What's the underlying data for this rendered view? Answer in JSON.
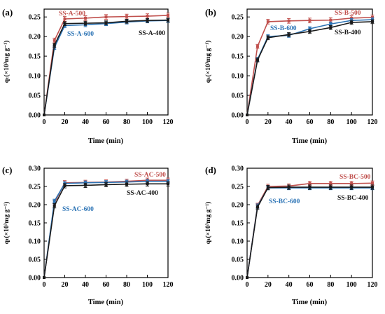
{
  "chart_data": [
    {
      "type": "line",
      "panel_label": "(a)",
      "xlabel": "Time (min)",
      "ylabel": "qₜ(×10³mg g⁻¹)",
      "x": [
        0,
        10,
        20,
        40,
        60,
        80,
        100,
        120
      ],
      "xticks": [
        "0",
        "20",
        "40",
        "60",
        "80",
        "100",
        "120"
      ],
      "xlim": [
        0,
        120
      ],
      "ylim": [
        0,
        0.27
      ],
      "yticks": [
        "0.00",
        "0.05",
        "0.10",
        "0.15",
        "0.20",
        "0.25"
      ],
      "series": [
        {
          "name": "SS-A-500",
          "color": "#c0504d",
          "values": [
            0,
            0.19,
            0.245,
            0.247,
            0.25,
            0.251,
            0.252,
            0.254
          ],
          "err": [
            0,
            0.006,
            0.006,
            0.006,
            0.006,
            0.006,
            0.006,
            0.006
          ]
        },
        {
          "name": "SS-A-600",
          "color": "#2e75b6",
          "values": [
            0,
            0.172,
            0.228,
            0.23,
            0.233,
            0.237,
            0.24,
            0.241
          ],
          "err": [
            0,
            0.005,
            0.005,
            0.005,
            0.005,
            0.005,
            0.005,
            0.005
          ]
        },
        {
          "name": "SS-A-400",
          "color": "#1a1a1a",
          "values": [
            0,
            0.178,
            0.233,
            0.234,
            0.235,
            0.239,
            0.241,
            0.242
          ],
          "err": [
            0,
            0.005,
            0.005,
            0.005,
            0.005,
            0.005,
            0.005,
            0.005
          ]
        }
      ],
      "labels": [
        {
          "text": "SS-A-500",
          "color": "#c0504d"
        },
        {
          "text": "SS-A-600",
          "color": "#2e75b6"
        },
        {
          "text": "SS-A-400",
          "color": "#1a1a1a"
        }
      ]
    },
    {
      "type": "line",
      "panel_label": "(b)",
      "xlabel": "Time (min)",
      "ylabel": "qₜ(×10³mg g⁻¹)",
      "x": [
        0,
        10,
        20,
        40,
        60,
        80,
        100,
        120
      ],
      "xticks": [
        "0",
        "20",
        "40",
        "60",
        "80",
        "100",
        "120"
      ],
      "xlim": [
        0,
        120
      ],
      "ylim": [
        0,
        0.27
      ],
      "yticks": [
        "0.00",
        "0.05",
        "0.10",
        "0.15",
        "0.20",
        "0.25"
      ],
      "series": [
        {
          "name": "SS-B-500",
          "color": "#c0504d",
          "values": [
            0,
            0.175,
            0.238,
            0.24,
            0.241,
            0.242,
            0.247,
            0.249
          ],
          "err": [
            0,
            0.005,
            0.006,
            0.006,
            0.006,
            0.006,
            0.006,
            0.006
          ]
        },
        {
          "name": "SS-B-600",
          "color": "#2e75b6",
          "values": [
            0,
            0.142,
            0.2,
            0.203,
            0.22,
            0.232,
            0.241,
            0.243
          ],
          "err": [
            0,
            0.005,
            0.005,
            0.005,
            0.005,
            0.005,
            0.005,
            0.005
          ]
        },
        {
          "name": "SS-B-400",
          "color": "#1a1a1a",
          "values": [
            0,
            0.14,
            0.197,
            0.205,
            0.213,
            0.223,
            0.236,
            0.238
          ],
          "err": [
            0,
            0.005,
            0.005,
            0.005,
            0.005,
            0.005,
            0.005,
            0.005
          ]
        }
      ],
      "labels": [
        {
          "text": "SS-B-500",
          "color": "#c0504d"
        },
        {
          "text": "SS-B-600",
          "color": "#2e75b6"
        },
        {
          "text": "SS-B-400",
          "color": "#1a1a1a"
        }
      ]
    },
    {
      "type": "line",
      "panel_label": "(c)",
      "xlabel": "Time (min)",
      "ylabel": "qₜ(×10³mg g⁻¹)",
      "x": [
        0,
        10,
        20,
        40,
        60,
        80,
        100,
        120
      ],
      "xticks": [
        "0",
        "20",
        "40",
        "60",
        "80",
        "100",
        "120"
      ],
      "xlim": [
        0,
        120
      ],
      "ylim": [
        0,
        0.3
      ],
      "yticks": [
        "0.00",
        "0.05",
        "0.10",
        "0.15",
        "0.20",
        "0.25",
        "0.30"
      ],
      "series": [
        {
          "name": "SS-AC-500",
          "color": "#c0504d",
          "values": [
            0,
            0.205,
            0.26,
            0.261,
            0.262,
            0.264,
            0.267,
            0.267
          ],
          "err": [
            0,
            0.006,
            0.006,
            0.006,
            0.006,
            0.006,
            0.006,
            0.006
          ]
        },
        {
          "name": "SS-AC-600",
          "color": "#2e75b6",
          "values": [
            0,
            0.21,
            0.258,
            0.26,
            0.261,
            0.262,
            0.264,
            0.264
          ],
          "err": [
            0,
            0.005,
            0.005,
            0.005,
            0.005,
            0.005,
            0.005,
            0.005
          ]
        },
        {
          "name": "SS-AC-400",
          "color": "#1a1a1a",
          "values": [
            0,
            0.197,
            0.252,
            0.253,
            0.255,
            0.256,
            0.257,
            0.257
          ],
          "err": [
            0,
            0.006,
            0.006,
            0.006,
            0.006,
            0.006,
            0.006,
            0.006
          ]
        }
      ],
      "labels": [
        {
          "text": "SS-AC-500",
          "color": "#c0504d"
        },
        {
          "text": "SS-AC-600",
          "color": "#2e75b6"
        },
        {
          "text": "SS-AC-400",
          "color": "#1a1a1a"
        }
      ]
    },
    {
      "type": "line",
      "panel_label": "(d)",
      "xlabel": "Time (min)",
      "ylabel": "qₜ(×10³mg g⁻¹)",
      "x": [
        0,
        10,
        20,
        40,
        60,
        80,
        100,
        120
      ],
      "xticks": [
        "0",
        "20",
        "40",
        "60",
        "80",
        "100",
        "120"
      ],
      "xlim": [
        0,
        120
      ],
      "ylim": [
        0,
        0.3
      ],
      "yticks": [
        "0.00",
        "0.05",
        "0.10",
        "0.15",
        "0.20",
        "0.25",
        "0.30"
      ],
      "series": [
        {
          "name": "SS-BC-500",
          "color": "#c0504d",
          "values": [
            0,
            0.198,
            0.25,
            0.251,
            0.258,
            0.258,
            0.258,
            0.259
          ],
          "err": [
            0,
            0.006,
            0.006,
            0.006,
            0.006,
            0.006,
            0.006,
            0.006
          ]
        },
        {
          "name": "SS-BC-600",
          "color": "#2e75b6",
          "values": [
            0,
            0.196,
            0.246,
            0.246,
            0.246,
            0.246,
            0.246,
            0.246
          ],
          "err": [
            0,
            0.006,
            0.005,
            0.005,
            0.005,
            0.005,
            0.005,
            0.005
          ]
        },
        {
          "name": "SS-BC-400",
          "color": "#1a1a1a",
          "values": [
            0,
            0.193,
            0.247,
            0.248,
            0.248,
            0.248,
            0.248,
            0.248
          ],
          "err": [
            0,
            0.006,
            0.006,
            0.006,
            0.006,
            0.006,
            0.006,
            0.006
          ]
        }
      ],
      "labels": [
        {
          "text": "SS-BC-500",
          "color": "#c0504d"
        },
        {
          "text": "SS-BC-600",
          "color": "#2e75b6"
        },
        {
          "text": "SS-BC-400",
          "color": "#1a1a1a"
        }
      ]
    }
  ]
}
